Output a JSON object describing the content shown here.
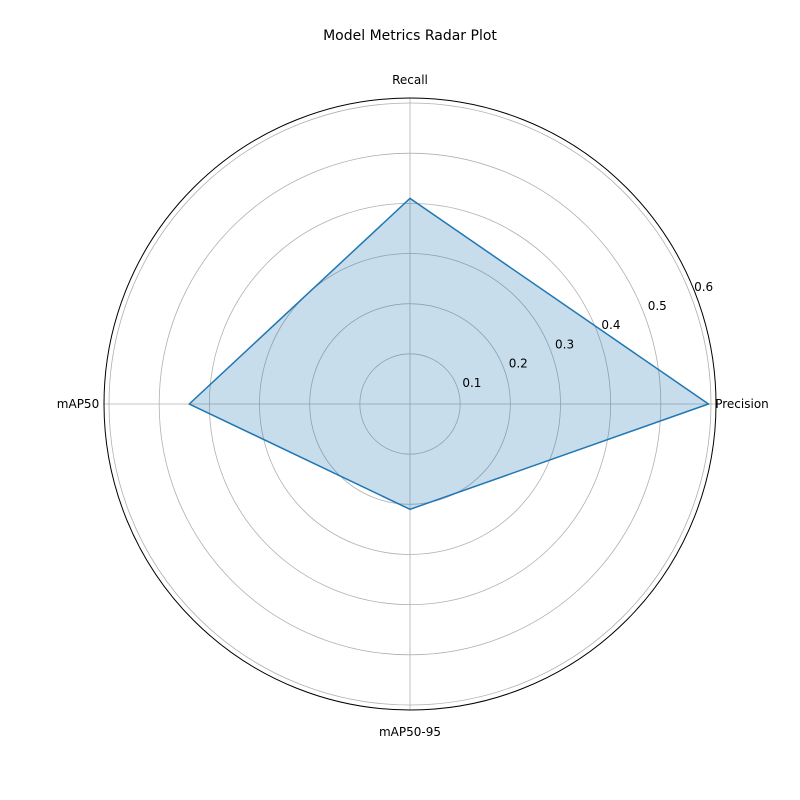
{
  "chart_data": {
    "type": "radar",
    "title": "Model Metrics Radar Plot",
    "categories": [
      "Precision",
      "Recall",
      "mAP50",
      "mAP50-95"
    ],
    "series": [
      {
        "values": [
          0.595,
          0.41,
          0.44,
          0.21
        ]
      }
    ],
    "rlim": [
      0,
      0.61
    ],
    "rticks": [
      0.1,
      0.2,
      0.3,
      0.4,
      0.5,
      0.6
    ],
    "rtick_labels": [
      "0.1",
      "0.2",
      "0.3",
      "0.4",
      "0.5",
      "0.6"
    ],
    "grid": true,
    "line_color": "#1f77b4",
    "fill_color": "#1f77b4",
    "fill_opacity": 0.25
  }
}
